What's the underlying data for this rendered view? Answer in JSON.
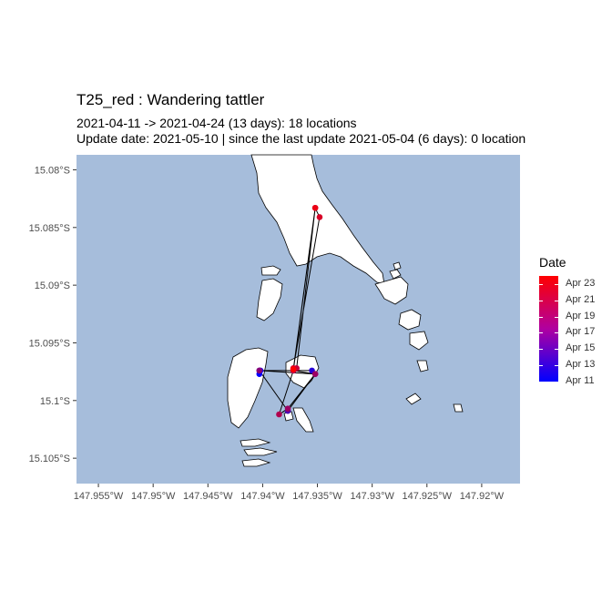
{
  "title": "T25_red  :  Wandering tattler",
  "subtitle_line1": "2021-04-11 -> 2021-04-24 (13 days): 18 locations",
  "subtitle_line2": "Update date: 2021-05-10 |  since the last update 2021-05-04 (6 days): 0 location",
  "colors": {
    "ocean": "#a6bddb",
    "land": "#ffffff",
    "coast": "#000000",
    "early": "#0000ff",
    "late": "#ff0000"
  },
  "axes": {
    "x_ticks": [
      "147.955°W",
      "147.95°W",
      "147.945°W",
      "147.94°W",
      "147.935°W",
      "147.93°W",
      "147.925°W",
      "147.92°W"
    ],
    "x_values": [
      -147.955,
      -147.95,
      -147.945,
      -147.94,
      -147.935,
      -147.93,
      -147.925,
      -147.92
    ],
    "y_ticks": [
      "15.08°S",
      "15.085°S",
      "15.09°S",
      "15.095°S",
      "15.1°S",
      "15.105°S"
    ],
    "y_values": [
      -15.08,
      -15.085,
      -15.09,
      -15.095,
      -15.1,
      -15.105
    ],
    "x_range": [
      -147.957,
      -147.9165
    ],
    "y_range": [
      -15.1072,
      -15.0787
    ]
  },
  "legend": {
    "title": "Date",
    "labels": [
      "Apr 23",
      "Apr 21",
      "Apr 19",
      "Apr 17",
      "Apr 15",
      "Apr 13",
      "Apr 11"
    ],
    "days": [
      23,
      21,
      19,
      17,
      15,
      13,
      11
    ],
    "day_range": [
      11,
      24
    ]
  },
  "chart_data": {
    "type": "scatter",
    "title": "T25_red  :  Wandering tattler",
    "xlabel": "",
    "ylabel": "",
    "points": [
      {
        "day": 11,
        "lon": -147.9403,
        "lat": -15.0977
      },
      {
        "day": 12,
        "lon": -147.9402,
        "lat": -15.0974
      },
      {
        "day": 13,
        "lon": -147.9355,
        "lat": -15.0974
      },
      {
        "day": 14,
        "lon": -147.9403,
        "lat": -15.0974
      },
      {
        "day": 15,
        "lon": -147.9377,
        "lat": -15.1009
      },
      {
        "day": 16,
        "lon": -147.9352,
        "lat": -15.0977
      },
      {
        "day": 17,
        "lon": -147.9372,
        "lat": -15.0974
      },
      {
        "day": 18,
        "lon": -147.9403,
        "lat": -15.0974
      },
      {
        "day": 19,
        "lon": -147.9352,
        "lat": -15.0977
      },
      {
        "day": 19,
        "lon": -147.9377,
        "lat": -15.1007
      },
      {
        "day": 20,
        "lon": -147.9385,
        "lat": -15.1012
      },
      {
        "day": 20,
        "lon": -147.9372,
        "lat": -15.0974
      },
      {
        "day": 21,
        "lon": -147.9352,
        "lat": -15.0833
      },
      {
        "day": 21,
        "lon": -147.9369,
        "lat": -15.0972
      },
      {
        "day": 22,
        "lon": -147.9372,
        "lat": -15.0972
      },
      {
        "day": 22,
        "lon": -147.9348,
        "lat": -15.0841
      },
      {
        "day": 23,
        "lon": -147.9352,
        "lat": -15.0833
      },
      {
        "day": 24,
        "lon": -147.9372,
        "lat": -15.0973
      }
    ]
  }
}
